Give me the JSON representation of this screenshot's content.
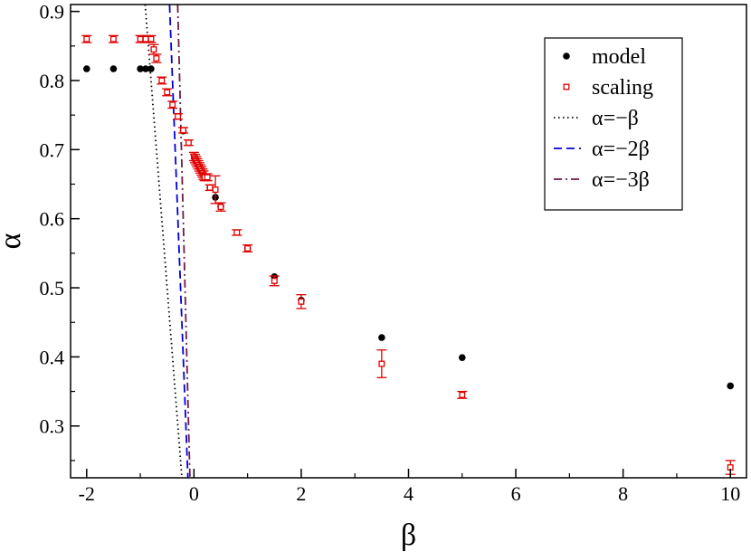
{
  "chart_data": {
    "type": "scatter",
    "title": "",
    "xlabel": "β",
    "ylabel": "α",
    "xlim": [
      -2.3,
      10.3
    ],
    "ylim": [
      0.225,
      0.91
    ],
    "xticks": [
      -2,
      0,
      2,
      4,
      6,
      8,
      10
    ],
    "xtick_labels": [
      "-2",
      "0",
      "2",
      "4",
      "6",
      "8",
      "10"
    ],
    "yticks": [
      0.3,
      0.4,
      0.5,
      0.6,
      0.7,
      0.8,
      0.9
    ],
    "ytick_labels": [
      "0.3",
      "0.4",
      "0.5",
      "0.6",
      "0.7",
      "0.8",
      "0.9"
    ],
    "legend_position": "top-right",
    "series": [
      {
        "name": "model",
        "kind": "points",
        "color": "#000000",
        "marker": "filled-circle",
        "x": [
          -2,
          -1.5,
          -1,
          -0.9,
          -0.8,
          -0.2,
          0.3,
          0.4,
          0.5,
          1.0,
          1.5,
          2.0,
          3.5,
          5.0,
          10.0
        ],
        "y": [
          0.817,
          0.817,
          0.817,
          0.817,
          0.817,
          0.727,
          0.645,
          0.631,
          0.618,
          0.557,
          0.516,
          0.482,
          0.428,
          0.399,
          0.358
        ]
      },
      {
        "name": "scaling",
        "kind": "points-errorbars",
        "color": "#e00000",
        "marker": "open-square",
        "x": [
          -2,
          -1.5,
          -1,
          -0.9,
          -0.8,
          -0.75,
          -0.7,
          -0.6,
          -0.5,
          -0.4,
          -0.3,
          -0.2,
          -0.1,
          0.0,
          0.02,
          0.04,
          0.06,
          0.08,
          0.1,
          0.12,
          0.14,
          0.16,
          0.18,
          0.2,
          0.25,
          0.3,
          0.4,
          0.5,
          0.8,
          1.0,
          1.5,
          2.0,
          3.5,
          5.0,
          10.0
        ],
        "y": [
          0.86,
          0.86,
          0.86,
          0.86,
          0.86,
          0.845,
          0.832,
          0.8,
          0.783,
          0.765,
          0.748,
          0.728,
          0.71,
          0.69,
          0.687,
          0.684,
          0.681,
          0.678,
          0.675,
          0.672,
          0.669,
          0.666,
          0.663,
          0.66,
          0.66,
          0.645,
          0.642,
          0.617,
          0.58,
          0.557,
          0.51,
          0.48,
          0.39,
          0.345,
          0.24
        ],
        "err": [
          0.005,
          0.005,
          0.005,
          0.005,
          0.005,
          0.007,
          0.006,
          0.005,
          0.005,
          0.005,
          0.004,
          0.004,
          0.004,
          0.006,
          0.006,
          0.006,
          0.006,
          0.006,
          0.006,
          0.006,
          0.006,
          0.006,
          0.006,
          0.005,
          0.005,
          0.004,
          0.02,
          0.006,
          0.004,
          0.005,
          0.007,
          0.01,
          0.02,
          0.005,
          0.01
        ]
      },
      {
        "name": "α=−β",
        "kind": "line",
        "color": "#000000",
        "dash": "dotted",
        "slope": -1,
        "x": [
          -0.91,
          -0.225
        ],
        "y": [
          0.91,
          0.225
        ]
      },
      {
        "name": "α=−2β",
        "kind": "line",
        "color": "#0000dd",
        "dash": "dashed",
        "slope": -2,
        "x": [
          -0.455,
          -0.1125
        ],
        "y": [
          0.91,
          0.225
        ]
      },
      {
        "name": "α=−3β",
        "kind": "line",
        "color": "#6b1a4a",
        "dash": "dashdot",
        "slope": -3,
        "x": [
          -0.3033,
          -0.075
        ],
        "y": [
          0.91,
          0.225
        ]
      }
    ]
  }
}
